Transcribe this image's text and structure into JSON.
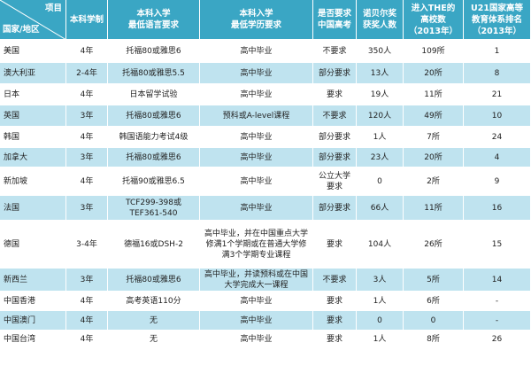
{
  "table": {
    "corner": {
      "top": "项目",
      "bottom": "国家/地区"
    },
    "headers": [
      "本科学制",
      "本科入学\n最低语言要求",
      "本科入学\n最低学历要求",
      "是否要求\n中国高考",
      "诺贝尔奖\n获奖人数",
      "进入THE的\n高校数\n（2013年）",
      "U21国家高等\n教育体系排名\n（2013年）"
    ],
    "rows": [
      [
        "美国",
        "4年",
        "托福80或雅思6",
        "高中毕业",
        "不要求",
        "350人",
        "109所",
        "1"
      ],
      [
        "澳大利亚",
        "2-4年",
        "托福80或雅思5.5",
        "高中毕业",
        "部分要求",
        "13人",
        "20所",
        "8"
      ],
      [
        "日本",
        "4年",
        "日本留学试验",
        "高中毕业",
        "要求",
        "19人",
        "11所",
        "21"
      ],
      [
        "英国",
        "3年",
        "托福80或雅思6",
        "预科或A-level课程",
        "不要求",
        "120人",
        "49所",
        "10"
      ],
      [
        "韩国",
        "4年",
        "韩国语能力考试4级",
        "高中毕业",
        "部分要求",
        "1人",
        "7所",
        "24"
      ],
      [
        "加拿大",
        "3年",
        "托福80或雅思6",
        "高中毕业",
        "部分要求",
        "23人",
        "20所",
        "4"
      ],
      [
        "新加坡",
        "4年",
        "托福90或雅思6.5",
        "高中毕业",
        "公立大学\n要求",
        "0",
        "2所",
        "9"
      ],
      [
        "法国",
        "3年",
        "TCF299-398或\nTEF361-540",
        "高中毕业",
        "部分要求",
        "66人",
        "11所",
        "16"
      ],
      [
        "德国",
        "3-4年",
        "德福16或DSH-2",
        "高中毕业，并在中国重点大学\n修满1个学期或在普通大学修\n满3个学期专业课程",
        "要求",
        "104人",
        "26所",
        "15"
      ],
      [
        "新西兰",
        "3年",
        "托福80或雅思6",
        "高中毕业，并读预科或在中国\n大学完成大一课程",
        "不要求",
        "3人",
        "5所",
        "14"
      ],
      [
        "中国香港",
        "4年",
        "高考英语110分",
        "高中毕业",
        "要求",
        "1人",
        "6所",
        "-"
      ],
      [
        "中国澳门",
        "4年",
        "无",
        "高中毕业",
        "要求",
        "0",
        "0",
        "-"
      ],
      [
        "中国台湾",
        "4年",
        "无",
        "高中毕业",
        "要求",
        "1人",
        "8所",
        "26"
      ]
    ]
  },
  "colors": {
    "header": "#3aa6c4",
    "row_alt": "#bfe3ef",
    "row": "#ffffff"
  }
}
